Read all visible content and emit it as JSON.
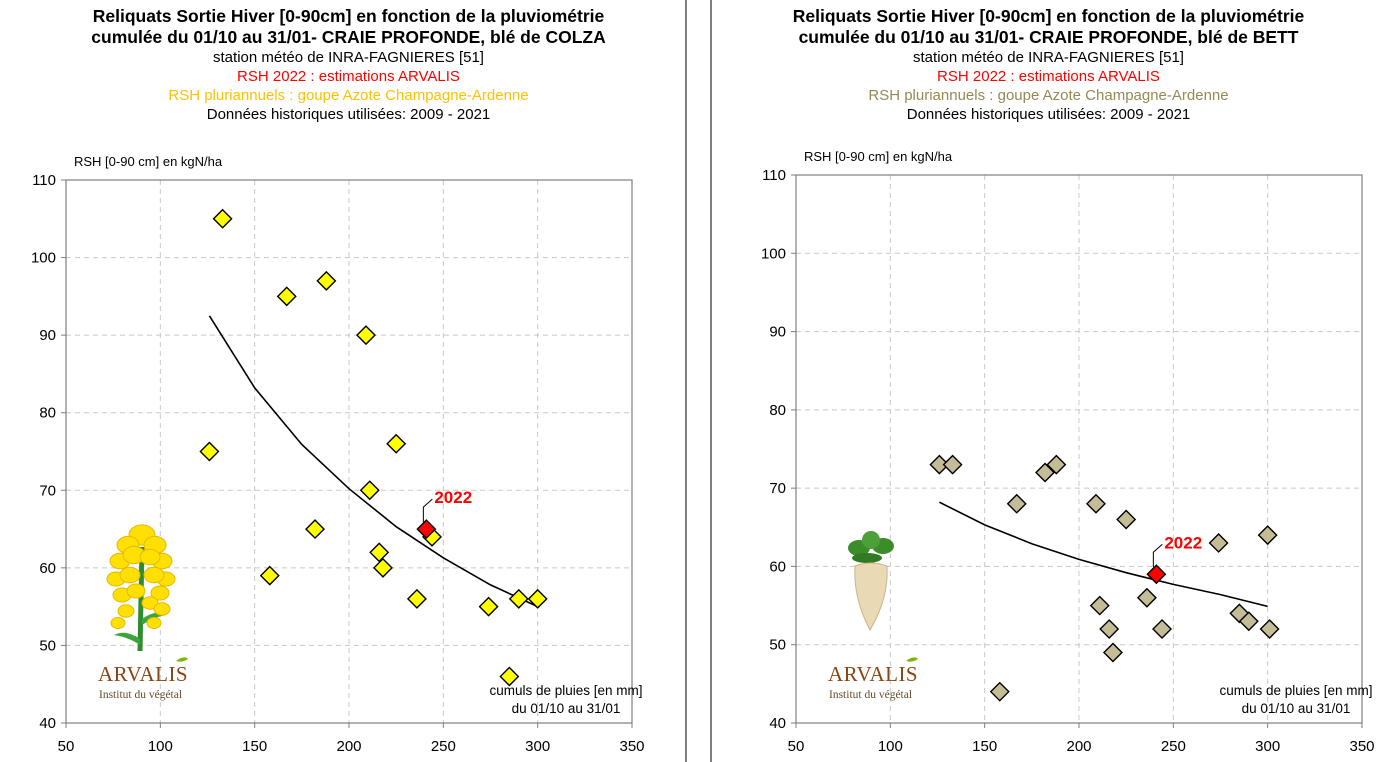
{
  "panels": [
    {
      "title_line1": "Reliquats Sortie Hiver [0-90cm] en fonction de la pluviométrie",
      "title_line2": "cumulée du 01/10 au 31/01- CRAIE PROFONDE, blé de COLZA",
      "station": "station météo de INRA-FAGNIERES [51]",
      "estimate_label": "RSH 2022 : estimations ARVALIS",
      "history_label": "RSH pluriannuels : goupe Azote Champagne-Ardenne",
      "years_label": "Données historiques utilisées: 2009 - 2021",
      "logo_name": "ARVALIS",
      "logo_tagline": "Institut du végétal",
      "crop_icon": "rapeseed-flower-icon",
      "colors": {
        "history_point": "#ffff00",
        "estimate_point": "#ff0000",
        "history_label": "#ffc000",
        "estimate_label": "#ff0000",
        "curve": "#000000"
      }
    },
    {
      "title_line1": "Reliquats Sortie Hiver [0-90cm] en fonction de la pluviométrie",
      "title_line2": "cumulée du 01/10 au 31/01- CRAIE PROFONDE, blé de BETT",
      "station": "station météo de INRA-FAGNIERES [51]",
      "estimate_label": "RSH 2022 : estimations ARVALIS",
      "history_label": "RSH pluriannuels : goupe Azote Champagne-Ardenne",
      "years_label": "Données historiques utilisées: 2009 - 2021",
      "logo_name": "ARVALIS",
      "logo_tagline": "Institut du végétal",
      "crop_icon": "sugar-beet-icon",
      "colors": {
        "history_point": "#c4bc96",
        "estimate_point": "#ff0000",
        "history_label": "#948a54",
        "estimate_label": "#ff0000",
        "curve": "#000000"
      }
    }
  ],
  "chart_data": [
    {
      "type": "scatter",
      "title": "Reliquats Sortie Hiver [0-90cm] en fonction de la pluviométrie cumulée du 01/10 au 31/01- CRAIE PROFONDE, blé de COLZA",
      "ylabel": "RSH [0-90 cm]  en kgN/ha",
      "xlabel_line1": "cumuls de pluies [en mm]",
      "xlabel_line2": "du 01/10 au 31/01",
      "xlim": [
        50,
        350
      ],
      "ylim": [
        40,
        110
      ],
      "x_ticks": [
        50,
        100,
        150,
        200,
        250,
        300,
        350
      ],
      "y_ticks": [
        40,
        50,
        60,
        70,
        80,
        90,
        100,
        110
      ],
      "grid": "dashed",
      "series": [
        {
          "name": "RSH pluriannuels : goupe Azote Champagne-Ardenne",
          "points": [
            {
              "x": 126,
              "y": 75
            },
            {
              "x": 133,
              "y": 105
            },
            {
              "x": 158,
              "y": 59
            },
            {
              "x": 167,
              "y": 95
            },
            {
              "x": 182,
              "y": 65
            },
            {
              "x": 188,
              "y": 97
            },
            {
              "x": 209,
              "y": 90
            },
            {
              "x": 211,
              "y": 70
            },
            {
              "x": 216,
              "y": 62
            },
            {
              "x": 218,
              "y": 60
            },
            {
              "x": 225,
              "y": 76
            },
            {
              "x": 236,
              "y": 56
            },
            {
              "x": 244,
              "y": 64
            },
            {
              "x": 274,
              "y": 55
            },
            {
              "x": 285,
              "y": 46
            },
            {
              "x": 290,
              "y": 56
            },
            {
              "x": 300,
              "y": 56
            }
          ]
        },
        {
          "name": "RSH 2022 : estimations ARVALIS",
          "points": [
            {
              "x": 241,
              "y": 65
            }
          ],
          "label": "2022"
        }
      ],
      "trend": {
        "points": [
          {
            "x": 126,
            "y": 92.5
          },
          {
            "x": 150,
            "y": 83.2
          },
          {
            "x": 175,
            "y": 75.9
          },
          {
            "x": 200,
            "y": 70.2
          },
          {
            "x": 225,
            "y": 65.3
          },
          {
            "x": 250,
            "y": 61.3
          },
          {
            "x": 275,
            "y": 57.8
          },
          {
            "x": 300,
            "y": 55
          }
        ]
      }
    },
    {
      "type": "scatter",
      "title": "Reliquats Sortie Hiver [0-90cm] en fonction de la pluviométrie cumulée du 01/10 au 31/01- CRAIE PROFONDE, blé de BETT",
      "ylabel": "RSH [0-90 cm]  en kgN/ha",
      "xlabel_line1": "cumuls de pluies [en mm]",
      "xlabel_line2": "du 01/10 au 31/01",
      "xlim": [
        50,
        350
      ],
      "ylim": [
        40,
        110
      ],
      "x_ticks": [
        50,
        100,
        150,
        200,
        250,
        300,
        350
      ],
      "y_ticks": [
        40,
        50,
        60,
        70,
        80,
        90,
        100,
        110
      ],
      "grid": "dashed",
      "series": [
        {
          "name": "RSH pluriannuels : goupe Azote Champagne-Ardenne",
          "points": [
            {
              "x": 126,
              "y": 73
            },
            {
              "x": 133,
              "y": 73
            },
            {
              "x": 158,
              "y": 44
            },
            {
              "x": 167,
              "y": 68
            },
            {
              "x": 182,
              "y": 72
            },
            {
              "x": 188,
              "y": 73
            },
            {
              "x": 209,
              "y": 68
            },
            {
              "x": 211,
              "y": 55
            },
            {
              "x": 216,
              "y": 52
            },
            {
              "x": 218,
              "y": 49
            },
            {
              "x": 225,
              "y": 66
            },
            {
              "x": 236,
              "y": 56
            },
            {
              "x": 244,
              "y": 52
            },
            {
              "x": 274,
              "y": 63
            },
            {
              "x": 285,
              "y": 54
            },
            {
              "x": 290,
              "y": 53
            },
            {
              "x": 300,
              "y": 64
            },
            {
              "x": 301,
              "y": 52
            }
          ]
        },
        {
          "name": "RSH 2022 : estimations ARVALIS",
          "points": [
            {
              "x": 241,
              "y": 59
            }
          ],
          "label": "2022"
        }
      ],
      "trend": {
        "points": [
          {
            "x": 126,
            "y": 68.2
          },
          {
            "x": 150,
            "y": 65.3
          },
          {
            "x": 175,
            "y": 62.9
          },
          {
            "x": 200,
            "y": 60.9
          },
          {
            "x": 225,
            "y": 59.2
          },
          {
            "x": 250,
            "y": 57.7
          },
          {
            "x": 275,
            "y": 56.4
          },
          {
            "x": 300,
            "y": 54.9
          }
        ]
      }
    }
  ]
}
